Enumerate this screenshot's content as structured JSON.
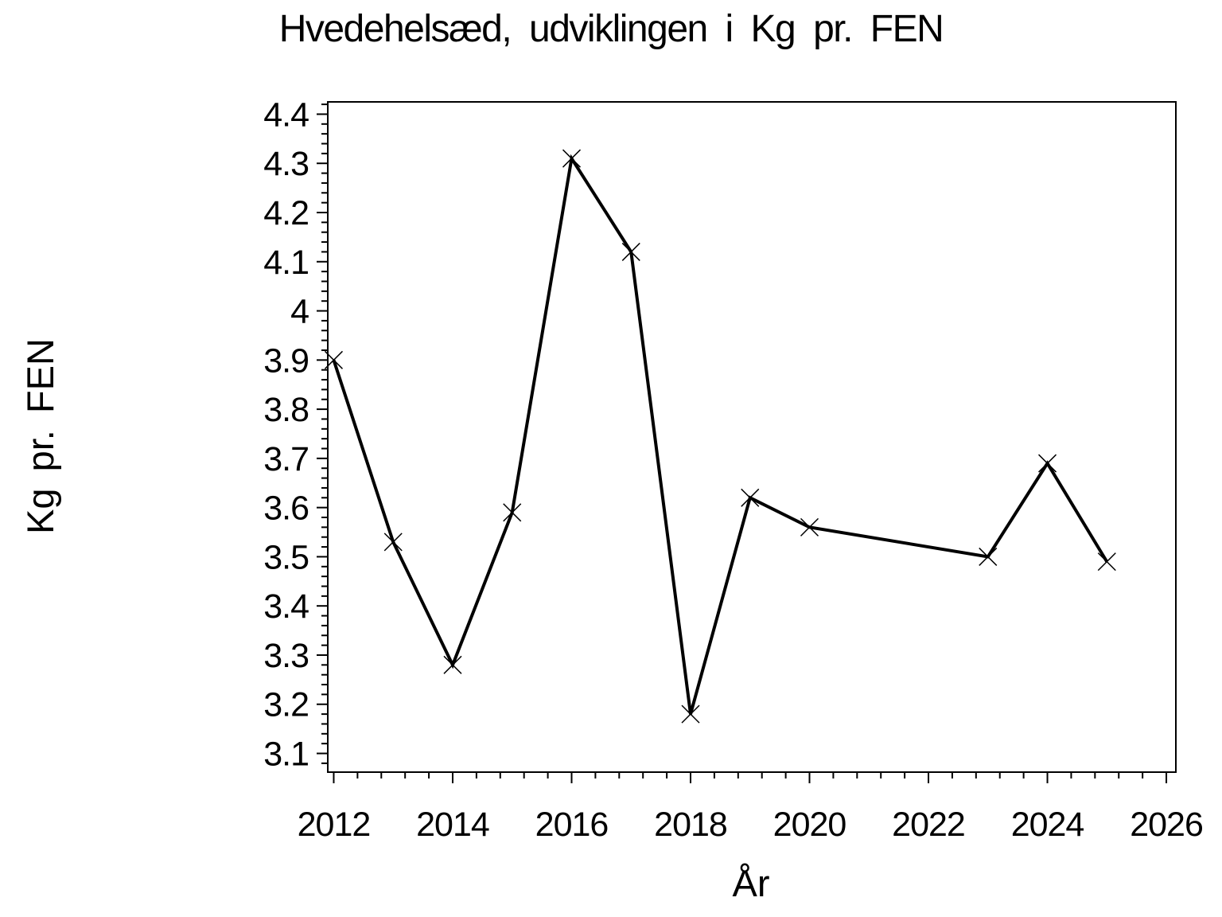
{
  "page": {
    "background": "#ffffff",
    "foreground": "#000000"
  },
  "chart_data": {
    "type": "line",
    "title": "Hvedehelsæd, udviklingen i Kg pr. FEN",
    "xlabel": "År",
    "ylabel": "Kg pr. FEN",
    "series": [
      {
        "name": "Kg pr. FEN",
        "x": [
          2012,
          2013,
          2014,
          2015,
          2016,
          2017,
          2018,
          2019,
          2020,
          2023,
          2024,
          2025
        ],
        "values": [
          3.9,
          3.53,
          3.28,
          3.59,
          4.31,
          4.12,
          3.18,
          3.62,
          3.56,
          3.5,
          3.69,
          3.49
        ],
        "line_color": "#000000",
        "marker": "x"
      }
    ],
    "xlim": [
      2011.9,
      2026.16
    ],
    "ylim": [
      3.062,
      4.425
    ],
    "x_major_ticks": [
      2012,
      2014,
      2016,
      2018,
      2020,
      2022,
      2024,
      2026
    ],
    "x_major_labels": [
      "2012",
      "2014",
      "2016",
      "2018",
      "2020",
      "2022",
      "2024",
      "2026"
    ],
    "x_minor_step": 0.4,
    "y_major_ticks": [
      3.1,
      3.2,
      3.3,
      3.4,
      3.5,
      3.6,
      3.7,
      3.8,
      3.9,
      4.0,
      4.1,
      4.2,
      4.3,
      4.4
    ],
    "y_major_labels": [
      "3.1",
      "3.2",
      "3.3",
      "3.4",
      "3.5",
      "3.6",
      "3.7",
      "3.8",
      "3.9",
      "4",
      "4.1",
      "4.2",
      "4.3",
      "4.4"
    ],
    "y_minor_step": 0.02,
    "grid": "off",
    "legend": "none",
    "frame": "box",
    "tick_direction": "out"
  }
}
